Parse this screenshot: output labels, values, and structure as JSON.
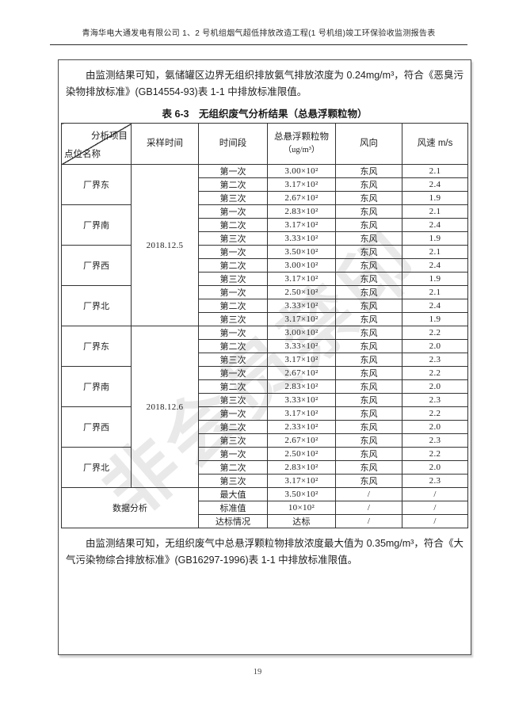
{
  "header": {
    "title": "青海华电大通发电有限公司 1、2 号机组烟气超低排放改造工程(1 号机组)竣工环保验收监测报告表"
  },
  "intro": "由监测结果可知，氨储罐区边界无组织排放氨气排放浓度为 0.24mg/m³，符合《恶臭污染物排放标准》(GB14554-93)表 1-1 中排放标准限值。",
  "table": {
    "title": "表 6-3　无组织废气分析结果（总悬浮颗粒物）",
    "header": {
      "corner_top": "分析项目",
      "corner_bottom": "点位名称",
      "sample_time": "采样时间",
      "period": "时间段",
      "pollutant": "总悬浮颗粒物",
      "unit": "（ug/m³）",
      "wind_dir": "风向",
      "wind_speed": "风速 m/s"
    },
    "groups": [
      {
        "date": "2018.12.5",
        "sites": [
          {
            "name": "厂界东",
            "rows": [
              {
                "period": "第一次",
                "value": "3.00×10²",
                "wind": "东风",
                "speed": "2.1"
              },
              {
                "period": "第二次",
                "value": "3.17×10²",
                "wind": "东风",
                "speed": "2.4"
              },
              {
                "period": "第三次",
                "value": "2.67×10²",
                "wind": "东风",
                "speed": "1.9"
              }
            ]
          },
          {
            "name": "厂界南",
            "rows": [
              {
                "period": "第一次",
                "value": "2.83×10²",
                "wind": "东风",
                "speed": "2.1"
              },
              {
                "period": "第二次",
                "value": "3.17×10²",
                "wind": "东风",
                "speed": "2.4"
              },
              {
                "period": "第三次",
                "value": "3.33×10²",
                "wind": "东风",
                "speed": "1.9"
              }
            ]
          },
          {
            "name": "厂界西",
            "rows": [
              {
                "period": "第一次",
                "value": "3.50×10²",
                "wind": "东风",
                "speed": "2.1"
              },
              {
                "period": "第二次",
                "value": "3.00×10²",
                "wind": "东风",
                "speed": "2.4"
              },
              {
                "period": "第三次",
                "value": "3.17×10²",
                "wind": "东风",
                "speed": "1.9"
              }
            ]
          },
          {
            "name": "厂界北",
            "rows": [
              {
                "period": "第一次",
                "value": "2.50×10²",
                "wind": "东风",
                "speed": "2.1"
              },
              {
                "period": "第二次",
                "value": "3.33×10²",
                "wind": "东风",
                "speed": "2.4"
              },
              {
                "period": "第三次",
                "value": "3.17×10²",
                "wind": "东风",
                "speed": "1.9"
              }
            ]
          }
        ]
      },
      {
        "date": "2018.12.6",
        "sites": [
          {
            "name": "厂界东",
            "rows": [
              {
                "period": "第一次",
                "value": "3.00×10²",
                "wind": "东风",
                "speed": "2.2"
              },
              {
                "period": "第二次",
                "value": "3.33×10²",
                "wind": "东风",
                "speed": "2.0"
              },
              {
                "period": "第三次",
                "value": "3.17×10²",
                "wind": "东风",
                "speed": "2.3"
              }
            ]
          },
          {
            "name": "厂界南",
            "rows": [
              {
                "period": "第一次",
                "value": "2.67×10²",
                "wind": "东风",
                "speed": "2.2"
              },
              {
                "period": "第二次",
                "value": "2.83×10²",
                "wind": "东风",
                "speed": "2.0"
              },
              {
                "period": "第三次",
                "value": "3.33×10²",
                "wind": "东风",
                "speed": "2.3"
              }
            ]
          },
          {
            "name": "厂界西",
            "rows": [
              {
                "period": "第一次",
                "value": "3.17×10²",
                "wind": "东风",
                "speed": "2.2"
              },
              {
                "period": "第二次",
                "value": "2.33×10²",
                "wind": "东风",
                "speed": "2.0"
              },
              {
                "period": "第三次",
                "value": "2.67×10²",
                "wind": "东风",
                "speed": "2.3"
              }
            ]
          },
          {
            "name": "厂界北",
            "rows": [
              {
                "period": "第一次",
                "value": "2.50×10²",
                "wind": "东风",
                "speed": "2.2"
              },
              {
                "period": "第二次",
                "value": "2.83×10²",
                "wind": "东风",
                "speed": "2.0"
              },
              {
                "period": "第三次",
                "value": "3.17×10²",
                "wind": "东风",
                "speed": "2.3"
              }
            ]
          }
        ]
      }
    ],
    "analysis": {
      "label": "数据分析",
      "rows": [
        {
          "period": "最大值",
          "value": "3.50×10²",
          "wind": "/",
          "speed": "/"
        },
        {
          "period": "标准值",
          "value": "10×10²",
          "wind": "/",
          "speed": "/"
        },
        {
          "period": "达标情况",
          "value": "达标",
          "wind": "/",
          "speed": "/"
        }
      ]
    }
  },
  "conclusion": "由监测结果可知，无组织废气中总悬浮颗粒物排放浓度最大值为 0.35mg/m³，符合《大气污染物综合排放标准》(GB16297-1996)表 1-1 中排放标准限值。",
  "watermark": "非会员禁印",
  "page_number": "19"
}
